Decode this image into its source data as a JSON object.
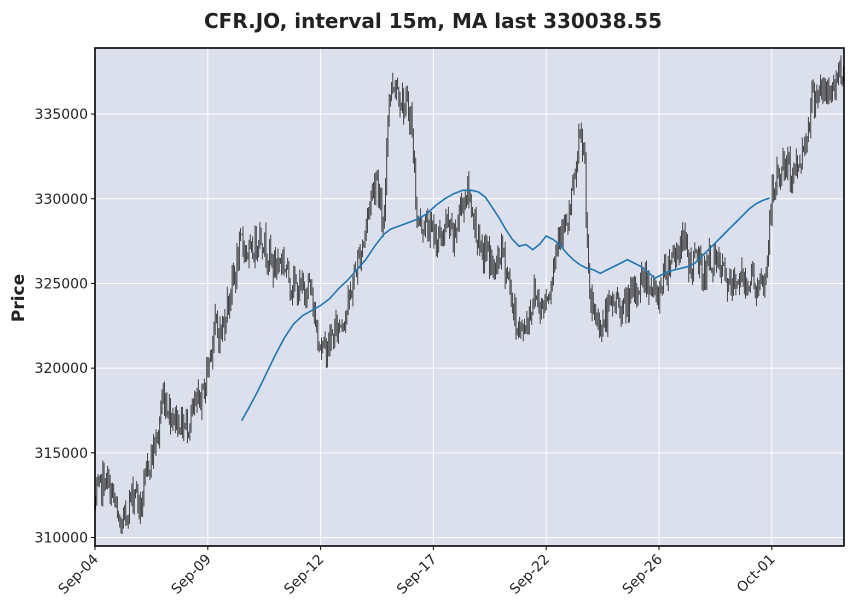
{
  "chart_data": {
    "type": "candlestick",
    "title": "CFR.JO, interval 15m, MA last 330038.55",
    "xlabel": "",
    "ylabel": "Price",
    "ylim": [
      309500,
      338900
    ],
    "grid": true,
    "y_ticks": [
      310000,
      315000,
      320000,
      325000,
      330000,
      335000
    ],
    "y_tick_labels": [
      "310000",
      "315000",
      "320000",
      "325000",
      "330000",
      "335000"
    ],
    "x_tick_labels": [
      "Sep-04",
      "Sep-09",
      "Sep-12",
      "Sep-17",
      "Sep-22",
      "Sep-26",
      "Oct-01"
    ],
    "x_tick_positions": [
      0,
      5,
      10,
      15,
      20,
      25,
      30
    ],
    "x_range": [
      0,
      33.2
    ],
    "price_path": [
      [
        0.0,
        312000
      ],
      [
        0.4,
        313500
      ],
      [
        0.8,
        312500
      ],
      [
        1.0,
        311000
      ],
      [
        1.2,
        310500
      ],
      [
        1.5,
        312000
      ],
      [
        1.8,
        313000
      ],
      [
        2.0,
        311500
      ],
      [
        2.4,
        314500
      ],
      [
        2.8,
        316000
      ],
      [
        3.0,
        318500
      ],
      [
        3.3,
        317500
      ],
      [
        3.6,
        317000
      ],
      [
        4.0,
        316500
      ],
      [
        4.4,
        317500
      ],
      [
        4.8,
        318500
      ],
      [
        5.0,
        320000
      ],
      [
        5.3,
        322500
      ],
      [
        5.6,
        322000
      ],
      [
        5.9,
        324000
      ],
      [
        6.2,
        325500
      ],
      [
        6.5,
        327500
      ],
      [
        6.9,
        326500
      ],
      [
        7.3,
        328000
      ],
      [
        7.6,
        327000
      ],
      [
        7.9,
        326000
      ],
      [
        8.3,
        326500
      ],
      [
        8.7,
        325000
      ],
      [
        9.1,
        324500
      ],
      [
        9.5,
        325000
      ],
      [
        9.8,
        322500
      ],
      [
        10.1,
        321000
      ],
      [
        10.4,
        321500
      ],
      [
        10.8,
        322500
      ],
      [
        11.2,
        323500
      ],
      [
        11.5,
        325500
      ],
      [
        11.9,
        327500
      ],
      [
        12.2,
        330000
      ],
      [
        12.5,
        331500
      ],
      [
        12.8,
        327500
      ],
      [
        13.0,
        336000
      ],
      [
        13.3,
        337000
      ],
      [
        13.7,
        335500
      ],
      [
        14.0,
        335000
      ],
      [
        14.3,
        328500
      ],
      [
        14.6,
        328500
      ],
      [
        15.0,
        328000
      ],
      [
        15.3,
        327500
      ],
      [
        15.6,
        328500
      ],
      [
        15.9,
        327500
      ],
      [
        16.2,
        329500
      ],
      [
        16.5,
        330500
      ],
      [
        16.8,
        329000
      ],
      [
        17.1,
        326500
      ],
      [
        17.4,
        327000
      ],
      [
        17.7,
        325500
      ],
      [
        18.0,
        327000
      ],
      [
        18.3,
        325500
      ],
      [
        18.6,
        323000
      ],
      [
        18.9,
        322000
      ],
      [
        19.2,
        323000
      ],
      [
        19.5,
        324500
      ],
      [
        19.8,
        323500
      ],
      [
        20.2,
        325000
      ],
      [
        20.6,
        328500
      ],
      [
        20.9,
        328000
      ],
      [
        21.2,
        330500
      ],
      [
        21.5,
        333500
      ],
      [
        21.7,
        332500
      ],
      [
        21.9,
        324000
      ],
      [
        22.2,
        323000
      ],
      [
        22.5,
        322500
      ],
      [
        22.8,
        323500
      ],
      [
        23.1,
        324000
      ],
      [
        23.4,
        323500
      ],
      [
        23.7,
        324000
      ],
      [
        24.0,
        324500
      ],
      [
        24.3,
        325500
      ],
      [
        24.6,
        325000
      ],
      [
        24.9,
        324000
      ],
      [
        25.2,
        325500
      ],
      [
        25.5,
        326500
      ],
      [
        25.8,
        327000
      ],
      [
        26.1,
        327500
      ],
      [
        26.4,
        326000
      ],
      [
        26.7,
        326500
      ],
      [
        27.0,
        325500
      ],
      [
        27.3,
        326500
      ],
      [
        27.6,
        326000
      ],
      [
        27.9,
        325500
      ],
      [
        28.2,
        324500
      ],
      [
        28.5,
        325500
      ],
      [
        28.8,
        325000
      ],
      [
        29.1,
        325500
      ],
      [
        29.4,
        324500
      ],
      [
        29.7,
        325000
      ],
      [
        30.0,
        330000
      ],
      [
        30.3,
        331500
      ],
      [
        30.6,
        332000
      ],
      [
        30.9,
        331500
      ],
      [
        31.2,
        332000
      ],
      [
        31.5,
        333500
      ],
      [
        31.8,
        336000
      ],
      [
        32.1,
        336500
      ],
      [
        32.4,
        336000
      ],
      [
        32.7,
        336500
      ],
      [
        33.0,
        337500
      ],
      [
        33.2,
        338000
      ]
    ],
    "ma_series": {
      "name": "MA",
      "color": "#1f77b4",
      "points": [
        [
          6.5,
          316900
        ],
        [
          6.8,
          317600
        ],
        [
          7.2,
          318600
        ],
        [
          7.6,
          319700
        ],
        [
          8.0,
          320800
        ],
        [
          8.4,
          321800
        ],
        [
          8.8,
          322600
        ],
        [
          9.2,
          323100
        ],
        [
          9.6,
          323400
        ],
        [
          10.0,
          323700
        ],
        [
          10.4,
          324100
        ],
        [
          10.8,
          324700
        ],
        [
          11.2,
          325200
        ],
        [
          11.6,
          325800
        ],
        [
          12.0,
          326400
        ],
        [
          12.4,
          327200
        ],
        [
          12.8,
          327900
        ],
        [
          13.1,
          328200
        ],
        [
          13.5,
          328400
        ],
        [
          13.9,
          328600
        ],
        [
          14.3,
          328800
        ],
        [
          14.7,
          329100
        ],
        [
          15.1,
          329600
        ],
        [
          15.5,
          330000
        ],
        [
          15.9,
          330300
        ],
        [
          16.3,
          330500
        ],
        [
          16.7,
          330500
        ],
        [
          17.0,
          330400
        ],
        [
          17.3,
          330100
        ],
        [
          17.6,
          329500
        ],
        [
          17.9,
          328900
        ],
        [
          18.2,
          328200
        ],
        [
          18.5,
          327600
        ],
        [
          18.8,
          327200
        ],
        [
          19.1,
          327300
        ],
        [
          19.4,
          327000
        ],
        [
          19.7,
          327300
        ],
        [
          20.0,
          327800
        ],
        [
          20.3,
          327600
        ],
        [
          20.6,
          327300
        ],
        [
          20.9,
          326800
        ],
        [
          21.2,
          326400
        ],
        [
          21.5,
          326100
        ],
        [
          21.8,
          325900
        ],
        [
          22.1,
          325800
        ],
        [
          22.4,
          325600
        ],
        [
          22.7,
          325800
        ],
        [
          23.0,
          326000
        ],
        [
          23.3,
          326200
        ],
        [
          23.6,
          326400
        ],
        [
          23.9,
          326200
        ],
        [
          24.2,
          326000
        ],
        [
          24.5,
          325700
        ],
        [
          24.8,
          325300
        ],
        [
          25.1,
          325500
        ],
        [
          25.4,
          325700
        ],
        [
          25.7,
          325800
        ],
        [
          26.0,
          325900
        ],
        [
          26.3,
          326000
        ],
        [
          26.6,
          326200
        ],
        [
          26.9,
          326600
        ],
        [
          27.2,
          327000
        ],
        [
          27.5,
          327400
        ],
        [
          27.8,
          327800
        ],
        [
          28.1,
          328200
        ],
        [
          28.4,
          328600
        ],
        [
          28.7,
          329000
        ],
        [
          29.0,
          329400
        ],
        [
          29.3,
          329700
        ],
        [
          29.6,
          329900
        ],
        [
          29.9,
          330038.55
        ]
      ]
    },
    "colors": {
      "plot_bg": "#dce0ec",
      "grid": "#ffffff",
      "candle": "#333333",
      "ma": "#1f77b4"
    }
  }
}
